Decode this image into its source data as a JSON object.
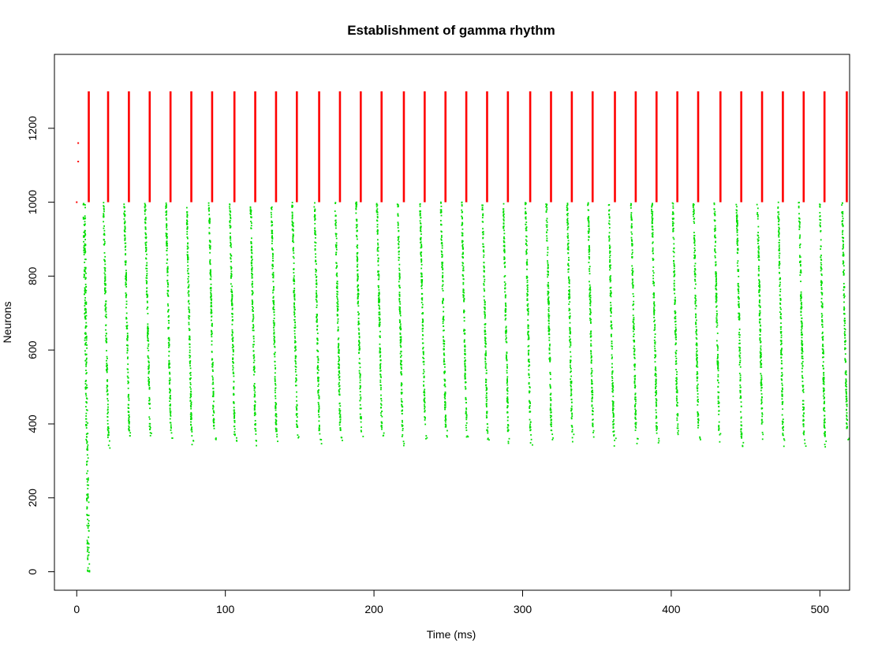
{
  "chart_data": {
    "type": "scatter",
    "title": "Establishment of gamma rhythm",
    "xlabel": "Time (ms)",
    "ylabel": "Neurons",
    "xlim": [
      -15,
      520
    ],
    "ylim": [
      -50,
      1400
    ],
    "x_ticks": [
      0,
      100,
      200,
      300,
      400,
      500
    ],
    "y_ticks": [
      0,
      200,
      400,
      600,
      800,
      1000,
      1200
    ],
    "grid": false,
    "legend": "none",
    "series": [
      {
        "color": "#ff0000",
        "neuron_range": [
          1000,
          1300
        ],
        "burst_times_ms": [
          8,
          21,
          35,
          49,
          63,
          77,
          91,
          106,
          120,
          134,
          148,
          163,
          177,
          191,
          205,
          220,
          234,
          248,
          262,
          276,
          290,
          305,
          319,
          333,
          347,
          362,
          376,
          390,
          404,
          418,
          433,
          447,
          461,
          475,
          489,
          503,
          518
        ]
      },
      {
        "color": "#00dd00",
        "neuron_range_first_burst": [
          0,
          1000
        ],
        "neuron_range": [
          370,
          1000
        ],
        "burst_start_times_ms": [
          5,
          18,
          32,
          46,
          60,
          74,
          89,
          103,
          117,
          131,
          145,
          160,
          174,
          188,
          202,
          216,
          231,
          245,
          259,
          273,
          287,
          302,
          316,
          330,
          344,
          358,
          373,
          387,
          401,
          415,
          429,
          444,
          458,
          472,
          486,
          500,
          515
        ]
      }
    ]
  }
}
